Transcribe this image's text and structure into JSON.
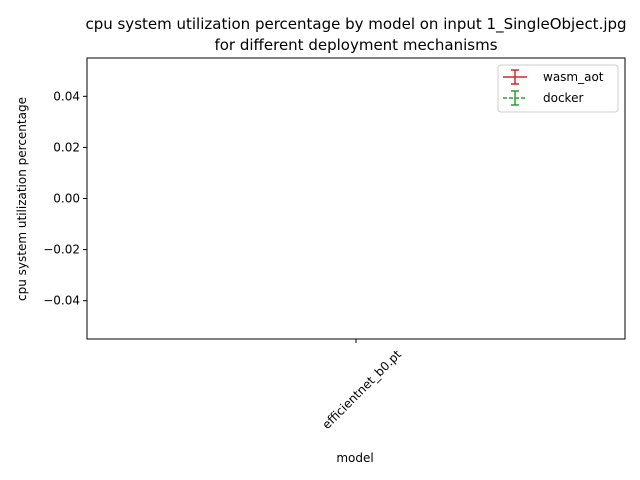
{
  "chart_data": {
    "type": "line",
    "title_line1": "cpu system utilization percentage by model on input 1_SingleObject.jpg",
    "title_line2": "for different deployment mechanisms",
    "xlabel": "model",
    "ylabel": "cpu system utilization percentage",
    "categories": [
      "efficientnet_b0.pt"
    ],
    "ylim": [
      -0.055,
      0.055
    ],
    "yticks": [
      0.04,
      0.02,
      0.0,
      -0.02,
      -0.04
    ],
    "ytick_labels": [
      "0.04",
      "0.02",
      "0.00",
      "−0.02",
      "−0.04"
    ],
    "grid": false,
    "legend_position": "upper right",
    "series": [
      {
        "name": "wasm_aot",
        "color": "#d62728",
        "linestyle": "solid",
        "values": [
          0.0
        ]
      },
      {
        "name": "docker",
        "color": "#2ca02c",
        "linestyle": "dashed",
        "values": [
          0.0
        ]
      }
    ]
  }
}
